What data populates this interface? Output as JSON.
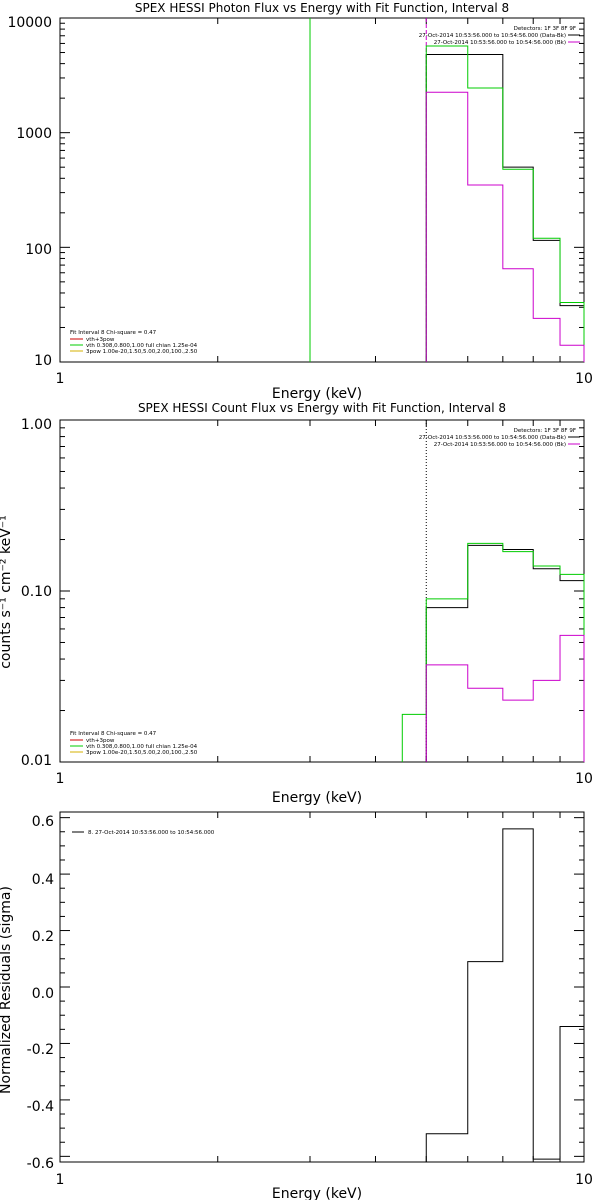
{
  "chart_data": [
    {
      "type": "line",
      "title": "SPEX HESSI Photon Flux vs Energy with Fit Function, Interval 8",
      "xlabel": "Energy (keV)",
      "ylabel": "",
      "x_scale": "log",
      "y_scale": "log",
      "xlim": [
        1,
        10
      ],
      "ylim": [
        10,
        10000
      ],
      "x_ticks": [
        "1",
        "10"
      ],
      "y_ticks": [
        "10",
        "100",
        "1000",
        "10000"
      ],
      "header_lines": [
        "Detectors: 1F 3F 8F 9F",
        "27-Oct-2014 10:53:56.000 to 10:54:56.000 (Data-Bk)",
        "27-Oct-2014 10:53:56.000 to 10:54:56.000 (Bk)"
      ],
      "legend": [
        "Fit Interval  8    Chi-square = 0.47",
        "vth+3pow",
        "vth 0.308,0.800,1.00  full chian 1.25e-04",
        "3pow 1.00e-20,1.50,5.00,2.00,100.,2.50"
      ],
      "markers": [
        {
          "x": 3.0,
          "color": "#00cc00",
          "style": "solid"
        },
        {
          "x": 5.0,
          "color": "#cc00cc",
          "style": "dashed"
        }
      ],
      "series": [
        {
          "name": "Data-Bk",
          "color": "#000000",
          "edges": [
            5,
            6,
            7,
            8,
            9,
            10
          ],
          "values": [
            4800,
            4800,
            500,
            115,
            31
          ]
        },
        {
          "name": "vth+3pow",
          "color": "#00cc00",
          "edges": [
            5,
            6,
            7,
            8,
            9,
            10
          ],
          "values": [
            5700,
            2450,
            480,
            120,
            33
          ]
        },
        {
          "name": "Bk",
          "color": "#cc00cc",
          "edges": [
            5,
            6,
            7,
            8,
            9,
            10
          ],
          "values": [
            2250,
            350,
            65,
            24,
            14
          ]
        }
      ]
    },
    {
      "type": "line",
      "title": "SPEX HESSI Count Flux vs Energy with Fit Function, Interval 8",
      "xlabel": "Energy (keV)",
      "ylabel": "counts s⁻¹ cm⁻² keV⁻¹",
      "x_scale": "log",
      "y_scale": "log",
      "xlim": [
        1,
        10
      ],
      "ylim": [
        0.01,
        1.0
      ],
      "x_ticks": [
        "1",
        "10"
      ],
      "y_ticks": [
        "0.01",
        "0.10",
        "1.00"
      ],
      "header_lines": [
        "Detectors: 1F 3F 8F 9F",
        "27-Oct-2014 10:53:56.000 to 10:54:56.000 (Data-Bk)",
        "27-Oct-2014 10:53:56.000 to 10:54:56.000 (Bk)"
      ],
      "legend": [
        "Fit Interval  8    Chi-square = 0.47",
        "vth+3pow",
        "vth 0.308,0.800,1.00  full chian 1.25e-04",
        "3pow 1.00e-20,1.50,5.00,2.00,100.,2.50"
      ],
      "markers": [
        {
          "x": 5.0,
          "color": "#000000",
          "style": "dotted"
        }
      ],
      "series": [
        {
          "name": "Data-Bk",
          "color": "#000000",
          "edges": [
            5,
            6,
            7,
            8,
            9,
            10
          ],
          "values": [
            0.08,
            0.185,
            0.175,
            0.135,
            0.115
          ]
        },
        {
          "name": "vth+3pow",
          "color": "#00cc00",
          "edges": [
            4.5,
            5,
            6,
            7,
            8,
            9,
            10
          ],
          "values": [
            0.019,
            0.09,
            0.19,
            0.17,
            0.14,
            0.125
          ]
        },
        {
          "name": "Bk",
          "color": "#cc00cc",
          "edges": [
            5,
            6,
            7,
            8,
            9,
            10
          ],
          "values": [
            0.037,
            0.027,
            0.023,
            0.03,
            0.055
          ]
        }
      ]
    },
    {
      "type": "line",
      "title": "",
      "xlabel": "Energy (keV)",
      "ylabel": "Normalized Residuals (sigma)",
      "x_scale": "log",
      "y_scale": "linear",
      "xlim": [
        1,
        10
      ],
      "ylim": [
        -0.62,
        0.62
      ],
      "x_ticks": [
        "1",
        "10"
      ],
      "y_ticks": [
        "-0.6",
        "-0.4",
        "-0.2",
        "0.0",
        "0.2",
        "0.4",
        "0.6"
      ],
      "legend": [
        "8. 27-Oct-2014 10:53:56.000 to 10:54:56.000"
      ],
      "series": [
        {
          "name": "8. 27-Oct-2014 10:53:56.000 to 10:54:56.000",
          "color": "#000000",
          "edges": [
            5,
            6,
            7,
            8,
            9,
            10
          ],
          "values": [
            -0.52,
            0.09,
            0.56,
            -0.61,
            -0.14
          ]
        }
      ]
    }
  ]
}
